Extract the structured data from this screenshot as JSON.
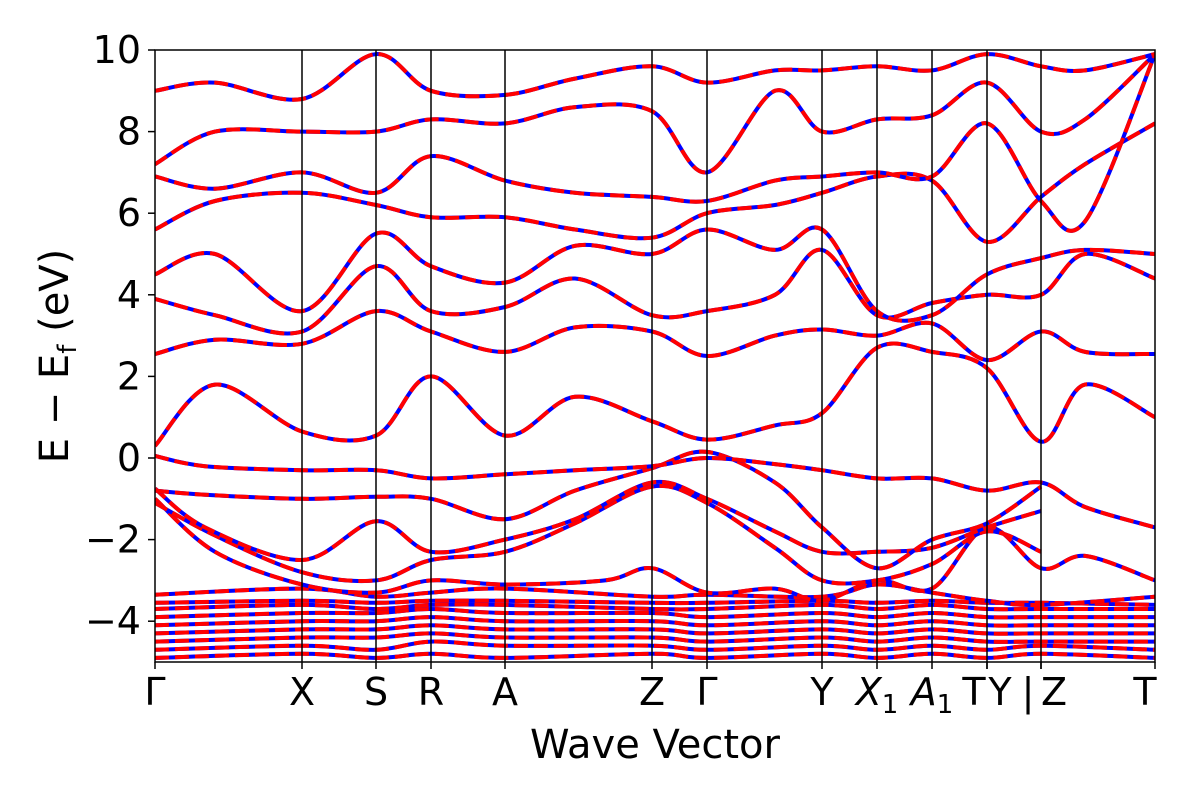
{
  "chart_data": {
    "type": "line",
    "xlabel": "Wave Vector",
    "ylabel": "E − E",
    "ylabel_sub": "f",
    "ylabel_unit": " (eV)",
    "ylim": [
      -5,
      10
    ],
    "yticks": [
      -4,
      -2,
      0,
      2,
      4,
      6,
      8,
      10
    ],
    "ytick_labels": [
      "−4",
      "−2",
      "0",
      "2",
      "4",
      "6",
      "8",
      "10"
    ],
    "xlim": [
      0,
      1
    ],
    "kpoints": [
      {
        "x": 0.0,
        "label": "Γ"
      },
      {
        "x": 0.147,
        "label": "X"
      },
      {
        "x": 0.221,
        "label": "S"
      },
      {
        "x": 0.276,
        "label": "R"
      },
      {
        "x": 0.35,
        "label": "A"
      },
      {
        "x": 0.497,
        "label": "Z"
      },
      {
        "x": 0.552,
        "label": "Γ"
      },
      {
        "x": 0.667,
        "label": "Y"
      },
      {
        "x": 0.722,
        "label": "X",
        "sub": "1"
      },
      {
        "x": 0.777,
        "label": "A",
        "sub": "1"
      },
      {
        "x": 0.832,
        "label": "T"
      },
      {
        "x": 0.832,
        "label": "Y"
      },
      {
        "x": 0.886,
        "label": "|"
      },
      {
        "x": 0.886,
        "label": "Z"
      },
      {
        "x": 1.0,
        "label": "T"
      }
    ],
    "series_style": [
      {
        "color": "#0000ff",
        "dash": "solid"
      },
      {
        "color": "#ff0000",
        "dash": "dashed"
      }
    ],
    "bands": [
      {
        "x": [
          0,
          0.147,
          0.221,
          0.276,
          0.35,
          0.497,
          0.552,
          0.667,
          0.722,
          0.777,
          0.832,
          0.886,
          1.0
        ],
        "y": [
          -4.9,
          -4.8,
          -4.9,
          -4.8,
          -4.9,
          -4.8,
          -4.9,
          -4.8,
          -4.9,
          -4.8,
          -4.9,
          -4.8,
          -4.9
        ]
      },
      {
        "x": [
          0,
          0.147,
          0.221,
          0.276,
          0.35,
          0.497,
          0.552,
          0.667,
          0.722,
          0.777,
          0.832,
          0.886,
          1.0
        ],
        "y": [
          -4.7,
          -4.6,
          -4.7,
          -4.5,
          -4.6,
          -4.6,
          -4.7,
          -4.6,
          -4.7,
          -4.6,
          -4.7,
          -4.6,
          -4.7
        ]
      },
      {
        "x": [
          0,
          0.147,
          0.221,
          0.276,
          0.35,
          0.497,
          0.552,
          0.667,
          0.722,
          0.777,
          0.832,
          0.886,
          1.0
        ],
        "y": [
          -4.5,
          -4.4,
          -4.4,
          -4.3,
          -4.4,
          -4.4,
          -4.5,
          -4.4,
          -4.5,
          -4.4,
          -4.5,
          -4.5,
          -4.5
        ]
      },
      {
        "x": [
          0,
          0.147,
          0.221,
          0.276,
          0.35,
          0.497,
          0.552,
          0.667,
          0.722,
          0.777,
          0.832,
          0.886,
          1.0
        ],
        "y": [
          -4.3,
          -4.2,
          -4.2,
          -4.1,
          -4.2,
          -4.2,
          -4.3,
          -4.2,
          -4.3,
          -4.2,
          -4.3,
          -4.3,
          -4.3
        ]
      },
      {
        "x": [
          0,
          0.147,
          0.221,
          0.276,
          0.35,
          0.497,
          0.552,
          0.667,
          0.722,
          0.777,
          0.832,
          0.886,
          1.0
        ],
        "y": [
          -4.1,
          -4.0,
          -4.0,
          -3.9,
          -4.0,
          -4.0,
          -4.1,
          -4.0,
          -4.1,
          -4.0,
          -4.1,
          -4.1,
          -4.1
        ]
      },
      {
        "x": [
          0,
          0.147,
          0.221,
          0.276,
          0.35,
          0.497,
          0.552,
          0.667,
          0.722,
          0.777,
          0.832,
          0.886,
          1.0
        ],
        "y": [
          -3.9,
          -3.8,
          -3.8,
          -3.7,
          -3.8,
          -3.8,
          -3.9,
          -3.8,
          -3.9,
          -3.8,
          -3.9,
          -3.9,
          -3.9
        ]
      },
      {
        "x": [
          0,
          0.147,
          0.221,
          0.276,
          0.35,
          0.497,
          0.552,
          0.667,
          0.722,
          0.777,
          0.832,
          0.886,
          1.0
        ],
        "y": [
          -3.7,
          -3.6,
          -3.7,
          -3.6,
          -3.6,
          -3.7,
          -3.7,
          -3.6,
          -3.7,
          -3.6,
          -3.7,
          -3.7,
          -3.7
        ]
      },
      {
        "x": [
          0,
          0.147,
          0.221,
          0.276,
          0.35,
          0.497,
          0.552,
          0.667,
          0.722,
          0.777,
          0.832,
          0.886,
          1.0
        ],
        "y": [
          -3.55,
          -3.5,
          -3.55,
          -3.5,
          -3.5,
          -3.55,
          -3.55,
          -3.5,
          -3.55,
          -3.5,
          -3.55,
          -3.55,
          -3.6
        ]
      },
      {
        "x": [
          0,
          0.147,
          0.221,
          0.276,
          0.35,
          0.497,
          0.552,
          0.667,
          0.722,
          0.777,
          0.832,
          0.886,
          1.0
        ],
        "y": [
          -3.35,
          -3.2,
          -3.4,
          -3.3,
          -3.2,
          -3.4,
          -3.35,
          -3.4,
          -3.1,
          -3.3,
          -3.5,
          -3.6,
          -3.4
        ]
      },
      {
        "x": [
          0,
          0.06,
          0.147,
          0.221,
          0.276,
          0.35,
          0.45,
          0.497,
          0.552,
          0.62,
          0.667,
          0.722,
          0.777,
          0.832,
          0.886,
          0.93,
          1.0
        ],
        "y": [
          -1.0,
          -2.3,
          -3.1,
          -3.3,
          -3.0,
          -3.1,
          -3.0,
          -2.7,
          -3.3,
          -3.2,
          -3.5,
          -3.0,
          -3.2,
          -1.7,
          -2.7,
          -2.4,
          -3.0
        ]
      },
      {
        "x": [
          0,
          0.06,
          0.147,
          0.221,
          0.276,
          0.35,
          0.42,
          0.497,
          0.552,
          0.62,
          0.667,
          0.722,
          0.777,
          0.832,
          0.886
        ],
        "y": [
          -1.1,
          -1.9,
          -2.8,
          -3.0,
          -2.5,
          -2.3,
          -1.6,
          -0.7,
          -1.1,
          -2.2,
          -3.0,
          -3.0,
          -2.6,
          -1.8,
          -2.3
        ]
      },
      {
        "x": [
          0,
          0.05,
          0.147,
          0.221,
          0.276,
          0.35,
          0.42,
          0.497,
          0.552,
          0.62,
          0.667,
          0.722,
          0.777,
          0.832,
          0.886
        ],
        "y": [
          -0.75,
          -1.7,
          -2.5,
          -1.55,
          -2.3,
          -2.0,
          -1.5,
          -0.6,
          -1.0,
          -1.8,
          -2.3,
          -2.3,
          -2.2,
          -1.7,
          -1.3
        ]
      },
      {
        "x": [
          0,
          0.05,
          0.147,
          0.221,
          0.276,
          0.35,
          0.42,
          0.497,
          0.552,
          0.62,
          0.667,
          0.722,
          0.777,
          0.832,
          0.886
        ],
        "y": [
          -0.8,
          -0.9,
          -1.0,
          -0.95,
          -1.0,
          -1.5,
          -0.8,
          -0.25,
          0.15,
          -0.6,
          -1.7,
          -2.7,
          -2.0,
          -1.6,
          -0.7
        ]
      },
      {
        "x": [
          0,
          0.05,
          0.147,
          0.221,
          0.276,
          0.35,
          0.42,
          0.497,
          0.552,
          0.62,
          0.667,
          0.722,
          0.777,
          0.832,
          0.886,
          0.93,
          1.0
        ],
        "y": [
          0.05,
          -0.2,
          -0.3,
          -0.3,
          -0.5,
          -0.4,
          -0.3,
          -0.2,
          0.0,
          -0.15,
          -0.3,
          -0.5,
          -0.5,
          -0.8,
          -0.6,
          -1.2,
          -1.7
        ]
      },
      {
        "x": [
          0,
          0.06,
          0.147,
          0.221,
          0.276,
          0.35,
          0.42,
          0.497,
          0.552,
          0.62,
          0.667,
          0.722,
          0.777,
          0.832,
          0.886,
          0.93,
          1.0
        ],
        "y": [
          0.3,
          1.8,
          0.65,
          0.55,
          2.0,
          0.55,
          1.5,
          0.9,
          0.45,
          0.8,
          1.1,
          2.7,
          2.6,
          2.2,
          0.4,
          1.8,
          1.0
        ]
      },
      {
        "x": [
          0,
          0.06,
          0.147,
          0.221,
          0.276,
          0.35,
          0.42,
          0.497,
          0.552,
          0.62,
          0.667,
          0.722,
          0.777,
          0.832,
          0.886,
          0.93,
          1.0
        ],
        "y": [
          2.55,
          2.9,
          2.8,
          3.6,
          3.1,
          2.6,
          3.2,
          3.1,
          2.5,
          3.0,
          3.15,
          3.0,
          3.3,
          2.4,
          3.1,
          2.6,
          2.55
        ]
      },
      {
        "x": [
          0,
          0.06,
          0.147,
          0.221,
          0.276,
          0.35,
          0.42,
          0.497,
          0.552,
          0.62,
          0.667,
          0.722,
          0.777,
          0.832,
          0.886,
          0.93,
          1.0
        ],
        "y": [
          3.9,
          3.5,
          3.1,
          4.7,
          3.6,
          3.7,
          4.4,
          3.5,
          3.6,
          4.0,
          5.1,
          3.5,
          3.8,
          4.0,
          4.0,
          5.0,
          4.4
        ]
      },
      {
        "x": [
          0,
          0.06,
          0.147,
          0.221,
          0.276,
          0.35,
          0.42,
          0.497,
          0.552,
          0.62,
          0.667,
          0.722,
          0.777,
          0.832,
          0.886,
          0.93,
          1.0
        ],
        "y": [
          4.5,
          5.0,
          3.6,
          5.5,
          4.7,
          4.3,
          5.2,
          5.0,
          5.6,
          5.1,
          5.6,
          3.6,
          3.5,
          4.5,
          4.9,
          5.1,
          5.0
        ]
      },
      {
        "x": [
          0,
          0.06,
          0.147,
          0.221,
          0.276,
          0.35,
          0.42,
          0.497,
          0.552,
          0.62,
          0.667,
          0.722,
          0.777,
          0.832,
          0.886,
          0.93,
          1.0
        ],
        "y": [
          5.6,
          6.3,
          6.5,
          6.2,
          5.9,
          5.9,
          5.6,
          5.4,
          6.0,
          6.2,
          6.5,
          6.9,
          6.8,
          5.3,
          6.4,
          7.2,
          8.2
        ]
      },
      {
        "x": [
          0,
          0.06,
          0.147,
          0.221,
          0.276,
          0.35,
          0.42,
          0.497,
          0.552,
          0.62,
          0.667,
          0.722,
          0.777,
          0.832,
          0.886,
          0.93,
          1.0
        ],
        "y": [
          6.9,
          6.6,
          7.0,
          6.5,
          7.4,
          6.8,
          6.5,
          6.4,
          6.3,
          6.8,
          6.9,
          7.0,
          6.9,
          8.2,
          6.3,
          5.8,
          9.9
        ]
      },
      {
        "x": [
          0,
          0.06,
          0.147,
          0.221,
          0.276,
          0.35,
          0.42,
          0.497,
          0.552,
          0.62,
          0.667,
          0.722,
          0.777,
          0.832,
          0.886,
          0.93,
          1.0
        ],
        "y": [
          7.2,
          8.0,
          8.0,
          8.0,
          8.3,
          8.2,
          8.6,
          8.5,
          7.0,
          9.0,
          8.0,
          8.3,
          8.4,
          9.2,
          8.0,
          8.3,
          9.9
        ]
      },
      {
        "x": [
          0,
          0.06,
          0.147,
          0.221,
          0.276,
          0.35,
          0.42,
          0.497,
          0.552,
          0.62,
          0.667,
          0.722,
          0.777,
          0.832,
          0.886,
          0.93,
          1.0
        ],
        "y": [
          9.0,
          9.2,
          8.8,
          9.9,
          9.0,
          8.9,
          9.3,
          9.6,
          9.2,
          9.5,
          9.5,
          9.6,
          9.5,
          9.9,
          9.6,
          9.5,
          9.9
        ]
      }
    ]
  }
}
